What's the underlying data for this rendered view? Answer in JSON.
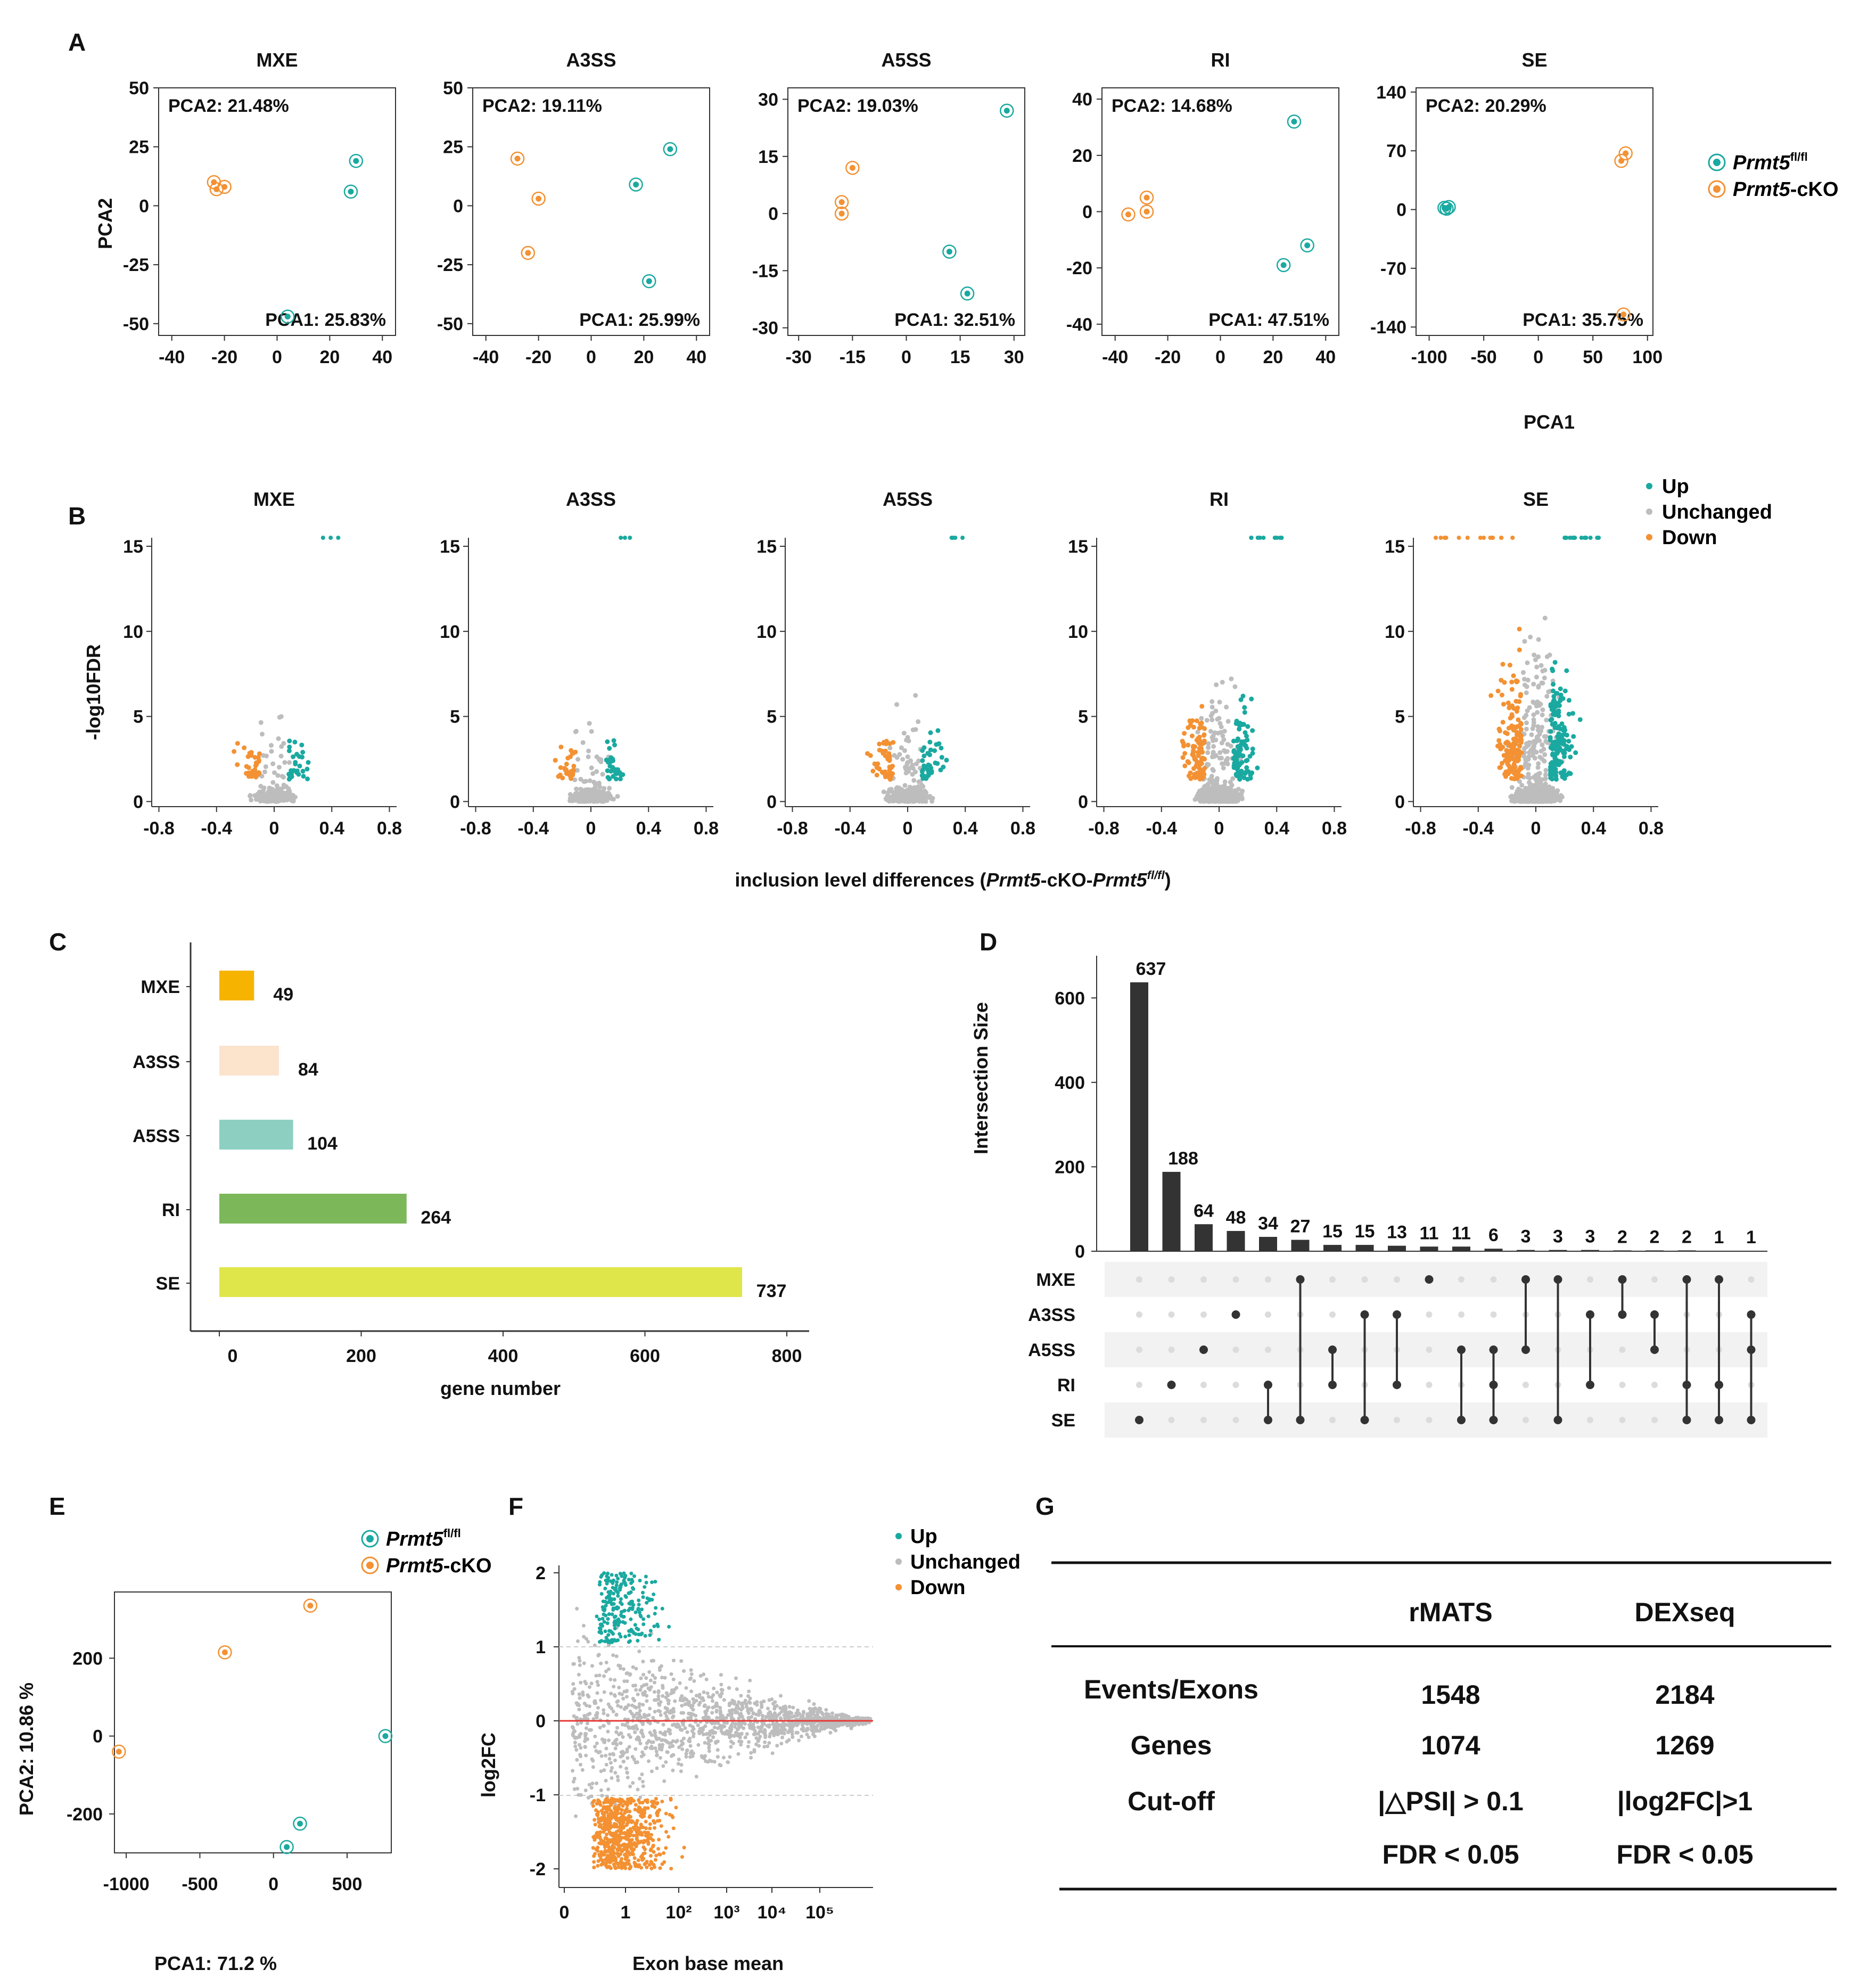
{
  "colors": {
    "wt": "#1aa9a0",
    "ko": "#f39133",
    "unchanged": "#bdbdbd",
    "bar_dark": "#333333",
    "mxe": "#f6b400",
    "a3ss": "#fbe3cc",
    "a5ss": "#8dd0c2",
    "ri": "#7cb85a",
    "se": "#dfe64a",
    "zero_line": "#e53935"
  },
  "panel_letters": {
    "a": "A",
    "b": "B",
    "c": "C",
    "d": "D",
    "e": "E",
    "f": "F",
    "g": "G"
  },
  "legend_pca": {
    "wt_label": "Prmt5",
    "wt_sup": "fl/fl",
    "ko_label": "Prmt5",
    "ko_suffix": "-cKO"
  },
  "legend_volcano": {
    "up": "Up",
    "unchanged": "Unchanged",
    "down": "Down"
  },
  "panel_a": {
    "ylabel": "PCA2",
    "xlabel": "PCA1",
    "plots": [
      {
        "title": "MXE",
        "pca2": "PCA2: 21.48%",
        "pca1": "PCA1: 25.83%",
        "xticks": [
          -40,
          -20,
          0,
          20,
          40
        ],
        "xlim": [
          -45,
          45
        ],
        "yticks": [
          50,
          25,
          0,
          -25,
          -50
        ],
        "ylim": [
          -55,
          50
        ],
        "ko": [
          [
            -24,
            10
          ],
          [
            -23,
            7
          ],
          [
            -20,
            8
          ]
        ],
        "wt": [
          [
            30,
            19
          ],
          [
            28,
            6
          ],
          [
            4,
            -47
          ]
        ]
      },
      {
        "title": "A3SS",
        "pca2": "PCA2: 19.11%",
        "pca1": "PCA1: 25.99%",
        "xticks": [
          -40,
          -20,
          0,
          20,
          40
        ],
        "xlim": [
          -45,
          45
        ],
        "yticks": [
          50,
          25,
          0,
          -25,
          -50
        ],
        "ylim": [
          -55,
          50
        ],
        "ko": [
          [
            -28,
            20
          ],
          [
            -20,
            3
          ],
          [
            -24,
            -20
          ]
        ],
        "wt": [
          [
            30,
            24
          ],
          [
            17,
            9
          ],
          [
            22,
            -32
          ]
        ]
      },
      {
        "title": "A5SS",
        "pca2": "PCA2: 19.03%",
        "pca1": "PCA1: 32.51%",
        "xticks": [
          -30,
          -15,
          0,
          15,
          30
        ],
        "xlim": [
          -33,
          33
        ],
        "yticks": [
          30,
          15,
          0,
          -15,
          -30
        ],
        "ylim": [
          -32,
          33
        ],
        "ko": [
          [
            -15,
            12
          ],
          [
            -18,
            3
          ],
          [
            -18,
            0
          ]
        ],
        "wt": [
          [
            28,
            27
          ],
          [
            12,
            -10
          ],
          [
            17,
            -21
          ]
        ]
      },
      {
        "title": "RI",
        "pca2": "PCA2: 14.68%",
        "pca1": "PCA1: 47.51%",
        "xticks": [
          -40,
          -20,
          0,
          20,
          40
        ],
        "xlim": [
          -45,
          45
        ],
        "yticks": [
          40,
          20,
          0,
          -20,
          -40
        ],
        "ylim": [
          -44,
          44
        ],
        "ko": [
          [
            -28,
            5
          ],
          [
            -28,
            0
          ],
          [
            -35,
            -1
          ]
        ],
        "wt": [
          [
            28,
            32
          ],
          [
            33,
            -12
          ],
          [
            24,
            -19
          ]
        ]
      },
      {
        "title": "SE",
        "pca2": "PCA2: 20.29%",
        "pca1": "PCA1: 35.75%",
        "xticks": [
          -100,
          -50,
          0,
          50,
          100
        ],
        "xlim": [
          -112,
          105
        ],
        "yticks": [
          140,
          70,
          0,
          -70,
          -140
        ],
        "ylim": [
          -150,
          145
        ],
        "ko": [
          [
            80,
            67
          ],
          [
            76,
            58
          ],
          [
            78,
            -125
          ]
        ],
        "wt": [
          [
            -86,
            2
          ],
          [
            -82,
            3
          ],
          [
            -84,
            1
          ]
        ]
      }
    ]
  },
  "panel_b": {
    "ylabel": "-log10FDR",
    "xlabel_pre": "inclusion level differences (",
    "xlabel_ko": "Prmt5",
    "xlabel_mid": "-cKO-",
    "xlabel_wt": "Prmt5",
    "xlabel_sup": "fl/fl",
    "xlabel_post": ")",
    "xticks": [
      -0.8,
      -0.4,
      0,
      0.4,
      0.8
    ],
    "yticks": [
      15,
      10,
      5,
      0
    ],
    "plots": [
      {
        "title": "MXE",
        "density": 1
      },
      {
        "title": "A3SS",
        "density": 1
      },
      {
        "title": "A5SS",
        "density": 1.4
      },
      {
        "title": "RI",
        "density": 3
      },
      {
        "title": "SE",
        "density": 5
      }
    ]
  },
  "panel_c": {
    "xlabel": "gene number",
    "xticks": [
      0,
      200,
      400,
      600,
      800
    ],
    "xlim": [
      -20,
      800
    ],
    "bars": [
      {
        "name": "MXE",
        "value": 49,
        "color_key": "mxe"
      },
      {
        "name": "A3SS",
        "value": 84,
        "color_key": "a3ss"
      },
      {
        "name": "A5SS",
        "value": 104,
        "color_key": "a5ss"
      },
      {
        "name": "RI",
        "value": 264,
        "color_key": "ri"
      },
      {
        "name": "SE",
        "value": 737,
        "color_key": "se"
      }
    ]
  },
  "panel_d": {
    "ylabel": "Intersection Size",
    "yticks": [
      0,
      200,
      400,
      600
    ],
    "ymax": 700,
    "sets": [
      "MXE",
      "A3SS",
      "A5SS",
      "RI",
      "SE"
    ],
    "intersections": [
      {
        "value": 637,
        "sets": [
          "SE"
        ]
      },
      {
        "value": 188,
        "sets": [
          "RI"
        ]
      },
      {
        "value": 64,
        "sets": [
          "A5SS"
        ]
      },
      {
        "value": 48,
        "sets": [
          "A3SS"
        ]
      },
      {
        "value": 34,
        "sets": [
          "RI",
          "SE"
        ]
      },
      {
        "value": 27,
        "sets": [
          "MXE",
          "SE"
        ]
      },
      {
        "value": 15,
        "sets": [
          "A5SS",
          "RI"
        ]
      },
      {
        "value": 15,
        "sets": [
          "A3SS",
          "SE"
        ]
      },
      {
        "value": 13,
        "sets": [
          "A3SS",
          "RI"
        ]
      },
      {
        "value": 11,
        "sets": [
          "MXE"
        ]
      },
      {
        "value": 11,
        "sets": [
          "A5SS",
          "SE"
        ]
      },
      {
        "value": 6,
        "sets": [
          "A5SS",
          "RI",
          "SE"
        ]
      },
      {
        "value": 3,
        "sets": [
          "MXE",
          "A5SS"
        ]
      },
      {
        "value": 3,
        "sets": [
          "MXE",
          "SE"
        ]
      },
      {
        "value": 3,
        "sets": [
          "A3SS",
          "RI"
        ]
      },
      {
        "value": 2,
        "sets": [
          "MXE",
          "A3SS"
        ]
      },
      {
        "value": 2,
        "sets": [
          "A3SS",
          "A5SS"
        ]
      },
      {
        "value": 2,
        "sets": [
          "MXE",
          "RI",
          "SE"
        ]
      },
      {
        "value": 1,
        "sets": [
          "MXE",
          "RI",
          "SE"
        ]
      },
      {
        "value": 1,
        "sets": [
          "A3SS",
          "A5SS",
          "SE"
        ]
      }
    ]
  },
  "panel_e": {
    "xlabel": "PCA1: 71.2 %",
    "ylabel": "PCA2: 10.86 %",
    "xticks": [
      -1000,
      -500,
      0,
      500
    ],
    "yticks": [
      200,
      0,
      -200
    ],
    "xlim": [
      -1080,
      800
    ],
    "ylim": [
      -300,
      370
    ],
    "ko": [
      [
        -1050,
        -40
      ],
      [
        -330,
        215
      ],
      [
        250,
        335
      ]
    ],
    "wt": [
      [
        760,
        0
      ],
      [
        180,
        -225
      ],
      [
        90,
        -285
      ]
    ]
  },
  "panel_f": {
    "xlabel": "Exon base mean",
    "ylabel": "log2FC",
    "xticks": [
      "0",
      "1",
      "10²",
      "10³",
      "10⁴",
      "10⁵"
    ],
    "yticks": [
      2,
      1,
      0,
      -1,
      -2
    ]
  },
  "panel_g": {
    "col1": "rMATS",
    "col2": "DEXseq",
    "rows": [
      {
        "label": "Events/Exons",
        "v1": "1548",
        "v2": "2184"
      },
      {
        "label": "Genes",
        "v1": "1074",
        "v2": "1269"
      },
      {
        "label": "Cut-off",
        "v1": "|△PSI| > 0.1",
        "v2": "|log2FC|>1"
      },
      {
        "label": "",
        "v1": "FDR < 0.05",
        "v2": "FDR < 0.05"
      }
    ]
  }
}
